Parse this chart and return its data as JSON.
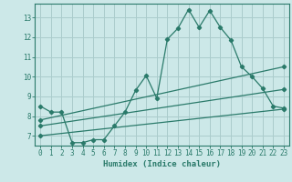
{
  "xlabel": "Humidex (Indice chaleur)",
  "bg_color": "#cce8e8",
  "grid_color": "#aacccc",
  "line_color": "#2a7a6a",
  "xlim": [
    -0.5,
    23.5
  ],
  "ylim": [
    6.5,
    13.7
  ],
  "yticks": [
    7,
    8,
    9,
    10,
    11,
    12,
    13
  ],
  "xticks": [
    0,
    1,
    2,
    3,
    4,
    5,
    6,
    7,
    8,
    9,
    10,
    11,
    12,
    13,
    14,
    15,
    16,
    17,
    18,
    19,
    20,
    21,
    22,
    23
  ],
  "line1_x": [
    0,
    1,
    2,
    3,
    4,
    5,
    6,
    7,
    8,
    9,
    10,
    11,
    12,
    13,
    14,
    15,
    16,
    17,
    18,
    19,
    20,
    21,
    22,
    23
  ],
  "line1_y": [
    8.5,
    8.2,
    8.2,
    6.65,
    6.65,
    6.8,
    6.8,
    7.5,
    8.2,
    9.3,
    10.05,
    8.9,
    11.9,
    12.45,
    13.4,
    12.5,
    13.35,
    12.5,
    11.85,
    10.5,
    10.0,
    9.4,
    8.5,
    8.4
  ],
  "line2_x": [
    0,
    23
  ],
  "line2_y": [
    7.8,
    10.5
  ],
  "line3_x": [
    0,
    23
  ],
  "line3_y": [
    7.0,
    8.35
  ],
  "line4_x": [
    0,
    23
  ],
  "line4_y": [
    7.5,
    9.35
  ]
}
